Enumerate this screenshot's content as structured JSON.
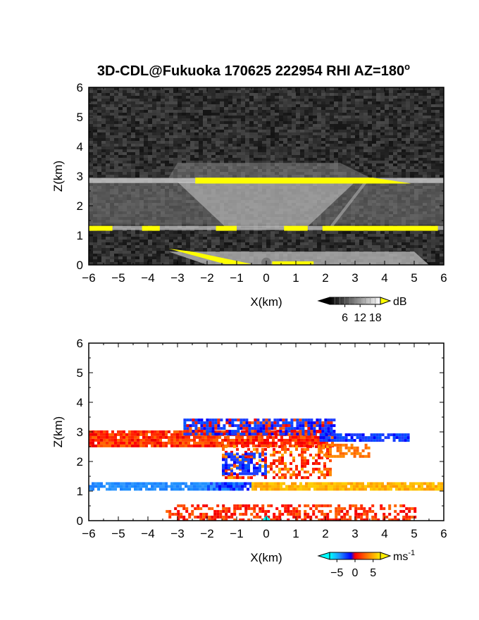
{
  "title": "3D-CDL@Fukuoka 170625 222954 RHI AZ=180",
  "title_deg": "o",
  "chart_data": [
    {
      "type": "heatmap",
      "panel": "top",
      "quantity": "backscatter intensity",
      "xlabel": "X(km)",
      "ylabel": "Z(km)",
      "xlim": [
        -6,
        6
      ],
      "ylim": [
        0,
        6
      ],
      "xticks": [
        "-6",
        "-5",
        "-4",
        "-3",
        "-2",
        "-1",
        "0",
        "1",
        "2",
        "3",
        "4",
        "5",
        "6"
      ],
      "yticks": [
        "0",
        "1",
        "2",
        "3",
        "4",
        "5",
        "6"
      ],
      "colorbar": {
        "unit": "dB",
        "ticks": [
          "6",
          "12",
          "18"
        ],
        "tick_values": [
          6,
          12,
          18
        ],
        "range": [
          0,
          20
        ],
        "colors": "grayscale, yellow above max"
      },
      "layers": [
        {
          "z": 2.85,
          "x0": -6.0,
          "x1": 6.0,
          "level": "yellow",
          "thickness": 0.12
        },
        {
          "z": 1.25,
          "x0": -6.0,
          "x1": 6.0,
          "level": "yellow",
          "thickness": 0.1
        },
        {
          "z": 0.3,
          "x0": -3.3,
          "x1": 1.6,
          "level": "yellow",
          "thickness": 0.08
        }
      ]
    },
    {
      "type": "heatmap",
      "panel": "bottom",
      "quantity": "Doppler velocity",
      "xlabel": "X(km)",
      "ylabel": "Z(km)",
      "xlim": [
        -6,
        6
      ],
      "ylim": [
        0,
        6
      ],
      "xticks": [
        "-6",
        "-5",
        "-4",
        "-3",
        "-2",
        "-1",
        "0",
        "1",
        "2",
        "3",
        "4",
        "5",
        "6"
      ],
      "yticks": [
        "0",
        "1",
        "2",
        "3",
        "4",
        "5",
        "6"
      ],
      "colorbar": {
        "unit": "ms",
        "unit_sup": "-1",
        "ticks": [
          "-5",
          "0",
          "5"
        ],
        "tick_values": [
          -5,
          0,
          5
        ],
        "range": [
          -7,
          7
        ]
      },
      "layers": [
        {
          "z": 2.85,
          "x0": -6.0,
          "x1": 6.0,
          "velocity": "positive (red)"
        },
        {
          "z": 3.1,
          "x0": -2.8,
          "x1": 2.3,
          "velocity": "negative (blue)"
        },
        {
          "z": 1.2,
          "x0": -6.0,
          "x1": -1.0,
          "velocity": "negative (light blue)"
        },
        {
          "z": 1.2,
          "x0": 0.0,
          "x1": 6.0,
          "velocity": "positive (orange)"
        },
        {
          "z": 0.4,
          "x0": -3.4,
          "x1": 5.0,
          "velocity": "positive (red)"
        }
      ]
    }
  ]
}
